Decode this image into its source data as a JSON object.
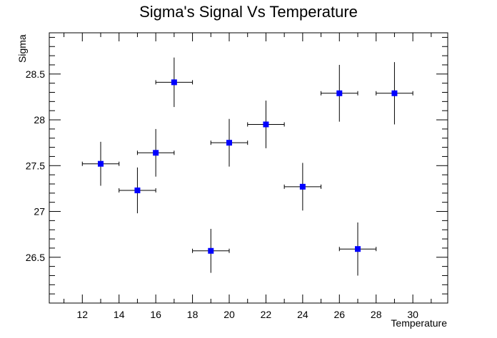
{
  "chart_data": {
    "type": "scatter",
    "title": "Sigma's Signal Vs Temperature",
    "xlabel": "Temperature",
    "ylabel": "Sigma",
    "xlim": [
      10.2,
      31.9
    ],
    "ylim": [
      26.0,
      28.95
    ],
    "x_ticks": [
      12,
      14,
      16,
      18,
      20,
      22,
      24,
      26,
      28,
      30
    ],
    "x_tick_labels": [
      "12",
      "14",
      "16",
      "18",
      "20",
      "22",
      "24",
      "26",
      "28",
      "30"
    ],
    "y_ticks": [
      26.5,
      27,
      27.5,
      28,
      28.5
    ],
    "y_tick_labels": [
      "26.5",
      "27",
      "27.5",
      "28",
      "28.5"
    ],
    "grid": false,
    "marker_color": "#0000ff",
    "points": [
      {
        "x": 13,
        "y": 27.52,
        "xerr": 1,
        "yerr": 0.24
      },
      {
        "x": 15,
        "y": 27.23,
        "xerr": 1,
        "yerr": 0.25
      },
      {
        "x": 16,
        "y": 27.64,
        "xerr": 1,
        "yerr": 0.26
      },
      {
        "x": 17,
        "y": 28.41,
        "xerr": 1,
        "yerr": 0.27
      },
      {
        "x": 19,
        "y": 26.57,
        "xerr": 1,
        "yerr": 0.24
      },
      {
        "x": 20,
        "y": 27.75,
        "xerr": 1,
        "yerr": 0.26
      },
      {
        "x": 22,
        "y": 27.95,
        "xerr": 1,
        "yerr": 0.26
      },
      {
        "x": 24,
        "y": 27.27,
        "xerr": 1,
        "yerr": 0.26
      },
      {
        "x": 26,
        "y": 28.29,
        "xerr": 1,
        "yerr": 0.31
      },
      {
        "x": 27,
        "y": 26.59,
        "xerr": 1,
        "yerr": 0.29
      },
      {
        "x": 29,
        "y": 28.29,
        "xerr": 1,
        "yerr": 0.34
      }
    ]
  }
}
